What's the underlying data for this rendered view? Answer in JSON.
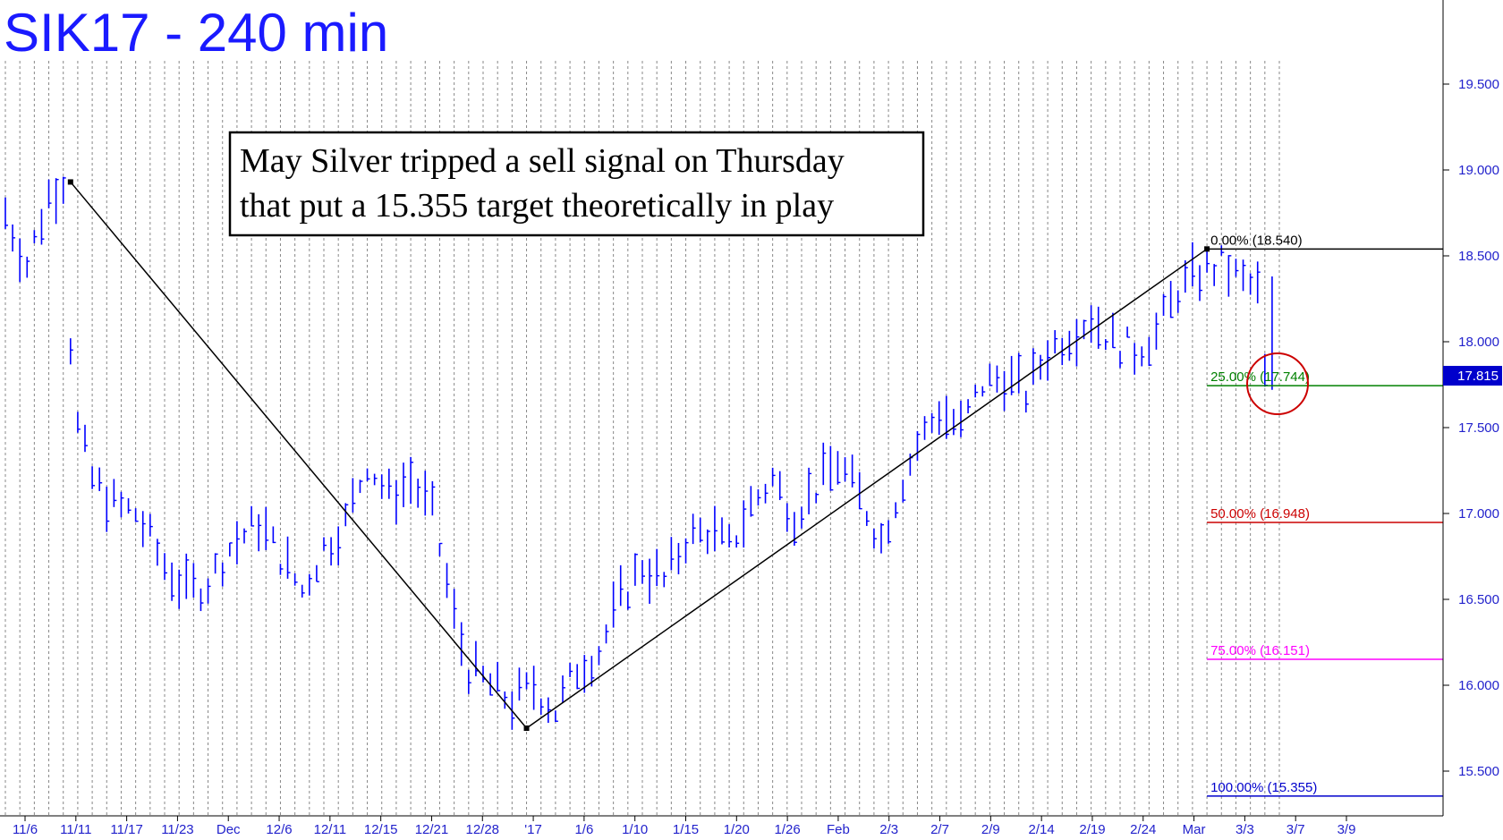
{
  "chart_data": {
    "type": "bar",
    "title": "SIK17 - 240 min",
    "annotation": [
      "May Silver tripped a sell signal on Thursday",
      "that put a 15.355 target theoretically in play"
    ],
    "y_axis_side": "right",
    "ylim": [
      15.25,
      19.95
    ],
    "yticks": [
      15.5,
      16.0,
      16.5,
      17.0,
      17.5,
      18.0,
      18.5,
      19.0,
      19.5
    ],
    "ytick_labels": [
      "15.500",
      "16.000",
      "16.500",
      "17.000",
      "17.500",
      "18.000",
      "18.500",
      "19.000",
      "19.500"
    ],
    "x_tick_labels": [
      "11/6",
      "11/11",
      "11/17",
      "11/23",
      "Dec",
      "12/6",
      "12/11",
      "12/15",
      "12/21",
      "12/28",
      "'17",
      "1/6",
      "1/10",
      "1/15",
      "1/20",
      "1/26",
      "Feb",
      "2/3",
      "2/7",
      "2/9",
      "2/14",
      "2/19",
      "2/24",
      "Mar",
      "3/3",
      "3/7",
      "3/9"
    ],
    "last_price": "17.815",
    "price_path": [
      [
        0,
        18.75
      ],
      [
        3,
        18.45
      ],
      [
        6,
        18.85
      ],
      [
        8,
        18.95
      ],
      [
        9,
        18.0
      ],
      [
        10,
        17.5
      ],
      [
        12,
        17.2
      ],
      [
        15,
        17.05
      ],
      [
        18,
        17.0
      ],
      [
        22,
        16.7
      ],
      [
        25,
        16.55
      ],
      [
        28,
        16.6
      ],
      [
        31,
        16.8
      ],
      [
        35,
        16.95
      ],
      [
        38,
        16.75
      ],
      [
        41,
        16.55
      ],
      [
        44,
        16.8
      ],
      [
        47,
        16.95
      ],
      [
        50,
        17.3
      ],
      [
        53,
        17.1
      ],
      [
        56,
        17.2
      ],
      [
        59,
        17.0
      ],
      [
        62,
        16.4
      ],
      [
        64,
        16.1
      ],
      [
        67,
        16.0
      ],
      [
        70,
        15.9
      ],
      [
        73,
        16.0
      ],
      [
        76,
        15.85
      ],
      [
        79,
        16.1
      ],
      [
        82,
        16.2
      ],
      [
        85,
        16.5
      ],
      [
        88,
        16.7
      ],
      [
        91,
        16.6
      ],
      [
        94,
        16.85
      ],
      [
        97,
        16.9
      ],
      [
        100,
        16.8
      ],
      [
        103,
        17.05
      ],
      [
        106,
        17.2
      ],
      [
        109,
        17.0
      ],
      [
        112,
        17.15
      ],
      [
        115,
        17.3
      ],
      [
        118,
        17.1
      ],
      [
        121,
        16.85
      ],
      [
        124,
        17.2
      ],
      [
        126,
        17.4
      ],
      [
        129,
        17.6
      ],
      [
        132,
        17.5
      ],
      [
        135,
        17.75
      ],
      [
        138,
        17.8
      ],
      [
        141,
        17.7
      ],
      [
        144,
        17.95
      ],
      [
        147,
        18.05
      ],
      [
        150,
        18.15
      ],
      [
        153,
        18.0
      ],
      [
        156,
        17.95
      ],
      [
        159,
        18.05
      ],
      [
        162,
        18.3
      ],
      [
        165,
        18.4
      ],
      [
        168,
        18.45
      ],
      [
        171,
        18.35
      ],
      [
        173,
        18.3
      ],
      [
        174,
        17.8
      ]
    ],
    "pivots": [
      {
        "label": "high",
        "x": 9,
        "y": 18.93
      },
      {
        "label": "low",
        "x": 72,
        "y": 15.75
      },
      {
        "label": "swing-high",
        "x": 166,
        "y": 18.54
      }
    ],
    "fib_levels": [
      {
        "label": "0.00% (18.540)",
        "value": 18.54,
        "color": "#000000"
      },
      {
        "label": "25.00% (17.744)",
        "value": 17.744,
        "color": "#008000"
      },
      {
        "label": "50.00% (16.948)",
        "value": 16.948,
        "color": "#cc0000"
      },
      {
        "label": "75.00% (16.151)",
        "value": 16.151,
        "color": "#ff00ff"
      },
      {
        "label": "100.00% (15.355)",
        "value": 15.355,
        "color": "#0000cc"
      }
    ],
    "colors": {
      "bars": "#0000ff",
      "grid": "#888888",
      "axis_text": "#2222cc",
      "circle": "#cc0000",
      "title": "#1a1aff"
    }
  }
}
